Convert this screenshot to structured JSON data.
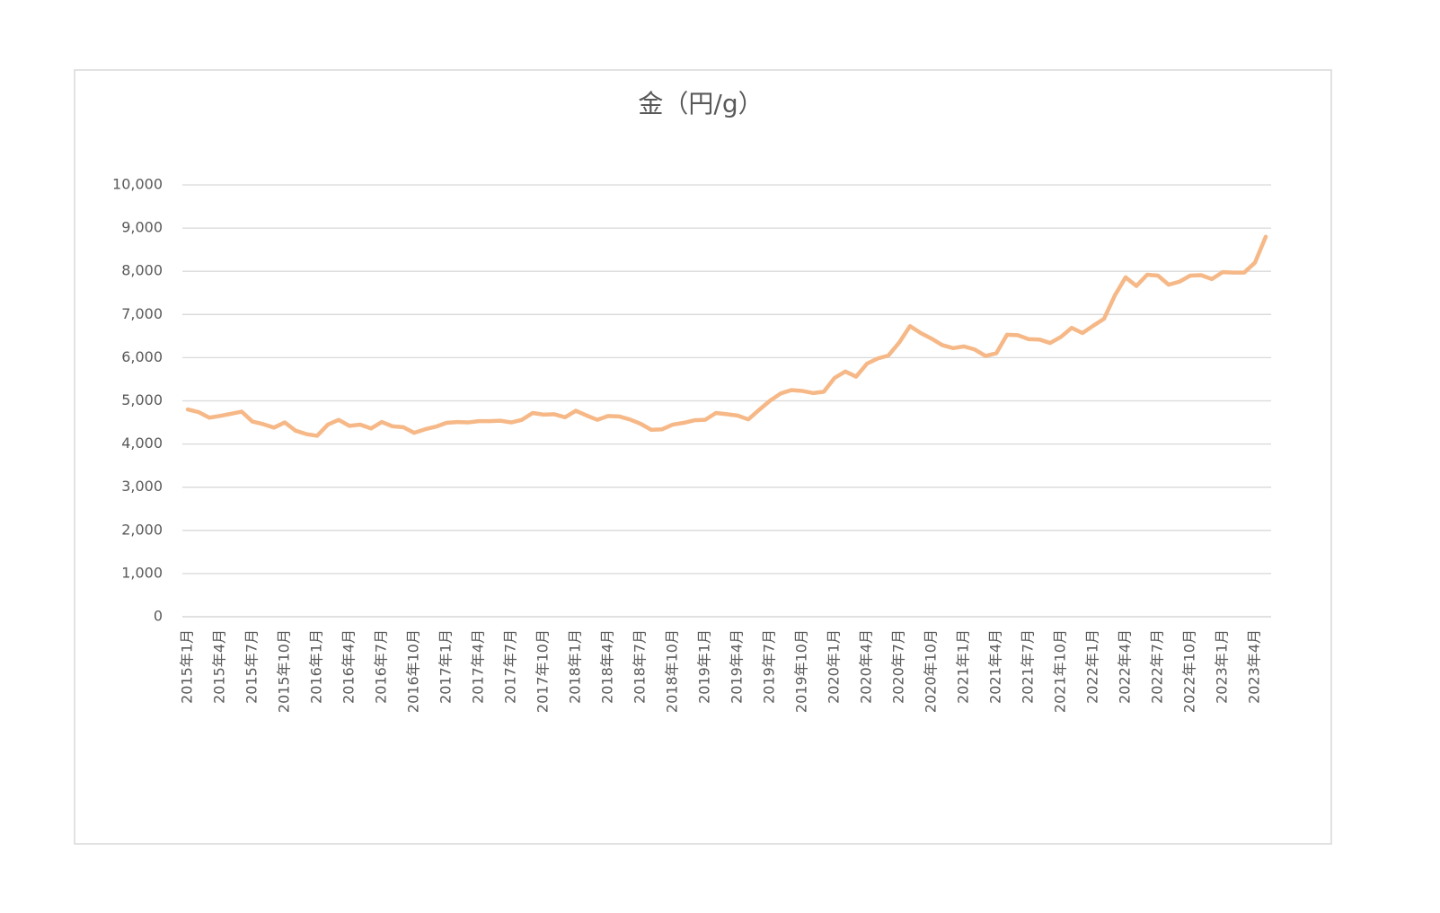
{
  "chart_data": {
    "type": "line",
    "title": "金（円/g）",
    "categories": [
      "2015年1月",
      null,
      null,
      "2015年4月",
      null,
      null,
      "2015年7月",
      null,
      null,
      "2015年10月",
      null,
      null,
      "2016年1月",
      null,
      null,
      "2016年4月",
      null,
      null,
      "2016年7月",
      null,
      null,
      "2016年10月",
      null,
      null,
      "2017年1月",
      null,
      null,
      "2017年4月",
      null,
      null,
      "2017年7月",
      null,
      null,
      "2017年10月",
      null,
      null,
      "2018年1月",
      null,
      null,
      "2018年4月",
      null,
      null,
      "2018年7月",
      null,
      null,
      "2018年10月",
      null,
      null,
      "2019年1月",
      null,
      null,
      "2019年4月",
      null,
      null,
      "2019年7月",
      null,
      null,
      "2019年10月",
      null,
      null,
      "2020年1月",
      null,
      null,
      "2020年4月",
      null,
      null,
      "2020年7月",
      null,
      null,
      "2020年10月",
      null,
      null,
      "2021年1月",
      null,
      null,
      "2021年4月",
      null,
      null,
      "2021年7月",
      null,
      null,
      "2021年10月",
      null,
      null,
      "2022年1月",
      null,
      null,
      "2022年4月",
      null,
      null,
      "2022年7月",
      null,
      null,
      "2022年10月",
      null,
      null,
      "2023年1月",
      null,
      null,
      "2023年4月",
      null
    ],
    "values": [
      4800,
      4740,
      4610,
      4650,
      4700,
      4750,
      4520,
      4460,
      4380,
      4500,
      4310,
      4230,
      4190,
      4450,
      4560,
      4420,
      4450,
      4360,
      4510,
      4410,
      4390,
      4260,
      4340,
      4400,
      4490,
      4510,
      4500,
      4530,
      4530,
      4540,
      4500,
      4560,
      4720,
      4680,
      4690,
      4620,
      4770,
      4660,
      4560,
      4650,
      4640,
      4570,
      4470,
      4330,
      4340,
      4450,
      4490,
      4550,
      4560,
      4720,
      4690,
      4660,
      4570,
      4790,
      5000,
      5170,
      5250,
      5230,
      5180,
      5210,
      5530,
      5680,
      5560,
      5860,
      5980,
      6050,
      6350,
      6730,
      6570,
      6440,
      6290,
      6220,
      6260,
      6190,
      6040,
      6100,
      6530,
      6520,
      6430,
      6420,
      6340,
      6480,
      6690,
      6570,
      6740,
      6900,
      7440,
      7860,
      7660,
      7920,
      7900,
      7690,
      7760,
      7900,
      7910,
      7820,
      7980,
      7970,
      7970,
      8200,
      8800
    ],
    "color": "#f6b887",
    "ylim": [
      0,
      10000
    ],
    "yticks": [
      0,
      {
        "value": 1000,
        "label": "1,000"
      },
      {
        "value": 2000,
        "label": "2,000"
      },
      {
        "value": 3000,
        "label": "3,000"
      },
      {
        "value": 4000,
        "label": "4,000"
      },
      {
        "value": 5000,
        "label": "5,000"
      },
      {
        "value": 6000,
        "label": "6,000"
      },
      {
        "value": 7000,
        "label": "7,000"
      },
      {
        "value": 8000,
        "label": "8,000"
      },
      {
        "value": 9000,
        "label": "9,000"
      },
      {
        "value": 10000,
        "label": "10,000"
      }
    ],
    "grid": true
  }
}
